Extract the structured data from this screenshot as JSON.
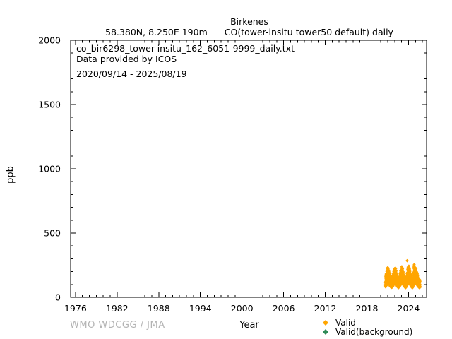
{
  "header": {
    "station": "Birkenes",
    "location": "58.380N, 8.250E 190m",
    "parameter": "CO(tower-insitu tower50 default) daily"
  },
  "infobox": {
    "filename": "co_bir6298_tower-insitu_162_6051-9999_daily.txt",
    "provider": "Data provided by ICOS",
    "period": "2020/09/14 - 2025/08/19"
  },
  "footer": {
    "credit": "WMO WDCGG / JMA"
  },
  "legend": {
    "items": [
      {
        "label": "Valid",
        "color": "#FFA500",
        "marker": "diamond-icon"
      },
      {
        "label": "Valid(background)",
        "color": "#2E8B57",
        "marker": "diamond-icon"
      }
    ]
  },
  "chart_data": {
    "type": "scatter",
    "title": "Birkenes",
    "subtitle": "58.380N, 8.250E 190m   CO(tower-insitu tower50 default) daily",
    "xlabel": "Year",
    "ylabel": "ppb",
    "units": "ppb",
    "grid": false,
    "legend_position": "bottom-right",
    "xlim": [
      1975.3,
      2026.6
    ],
    "ylim": [
      0,
      2000
    ],
    "x_major_ticks": [
      1976,
      1982,
      1988,
      1994,
      2000,
      2006,
      2012,
      2018,
      2024
    ],
    "x_tick_labels": [
      "1976",
      "1982",
      "1988",
      "1994",
      "2000",
      "2006",
      "2012",
      "2018",
      "2024"
    ],
    "x_minor_step": 1,
    "y_major_ticks": [
      0,
      500,
      1000,
      1500,
      2000
    ],
    "y_tick_labels": [
      "0",
      "500",
      "1000",
      "1500",
      "2000"
    ],
    "y_minor_step": 100,
    "data_period": "2020/09/14 - 2025/08/19",
    "series": [
      {
        "name": "Valid",
        "color": "#FFA500",
        "marker": "diamond",
        "points_per_month": 30,
        "monthly_envelope": [
          [
            2020.72,
            80,
            170
          ],
          [
            2020.8,
            88,
            185
          ],
          [
            2020.88,
            98,
            215
          ],
          [
            2020.97,
            108,
            235
          ],
          [
            2021.05,
            112,
            232
          ],
          [
            2021.13,
            108,
            222
          ],
          [
            2021.22,
            100,
            205
          ],
          [
            2021.3,
            92,
            185
          ],
          [
            2021.38,
            85,
            165
          ],
          [
            2021.47,
            78,
            148
          ],
          [
            2021.55,
            75,
            140
          ],
          [
            2021.63,
            78,
            148
          ],
          [
            2021.72,
            84,
            165
          ],
          [
            2021.8,
            92,
            185
          ],
          [
            2021.88,
            100,
            210
          ],
          [
            2021.97,
            108,
            232
          ],
          [
            2022.05,
            112,
            235
          ],
          [
            2022.13,
            108,
            225
          ],
          [
            2022.22,
            100,
            205
          ],
          [
            2022.3,
            92,
            185
          ],
          [
            2022.38,
            85,
            165
          ],
          [
            2022.47,
            78,
            148
          ],
          [
            2022.55,
            74,
            138
          ],
          [
            2022.63,
            78,
            150
          ],
          [
            2022.72,
            85,
            170
          ],
          [
            2022.8,
            94,
            192
          ],
          [
            2022.88,
            102,
            215
          ],
          [
            2022.97,
            110,
            238
          ],
          [
            2023.05,
            113,
            242
          ],
          [
            2023.13,
            108,
            228
          ],
          [
            2023.22,
            100,
            205
          ],
          [
            2023.3,
            92,
            182
          ],
          [
            2023.38,
            84,
            162
          ],
          [
            2023.47,
            78,
            146
          ],
          [
            2023.55,
            74,
            140
          ],
          [
            2023.63,
            78,
            152
          ],
          [
            2023.72,
            85,
            172
          ],
          [
            2023.8,
            94,
            195
          ],
          [
            2023.88,
            103,
            220
          ],
          [
            2023.97,
            111,
            240
          ],
          [
            2024.05,
            114,
            245
          ],
          [
            2024.13,
            109,
            230
          ],
          [
            2024.22,
            101,
            206
          ],
          [
            2024.3,
            92,
            183
          ],
          [
            2024.38,
            84,
            162
          ],
          [
            2024.47,
            78,
            146
          ],
          [
            2024.55,
            74,
            140
          ],
          [
            2024.63,
            79,
            155
          ],
          [
            2024.72,
            88,
            200
          ],
          [
            2024.8,
            100,
            258
          ],
          [
            2024.88,
            106,
            245
          ],
          [
            2024.97,
            112,
            238
          ],
          [
            2025.05,
            113,
            232
          ],
          [
            2025.13,
            108,
            220
          ],
          [
            2025.22,
            100,
            200
          ],
          [
            2025.3,
            91,
            180
          ],
          [
            2025.38,
            84,
            160
          ],
          [
            2025.47,
            77,
            145
          ],
          [
            2025.55,
            74,
            140
          ],
          [
            2025.62,
            76,
            138
          ]
        ],
        "outliers": [
          [
            2023.8,
            285
          ]
        ]
      },
      {
        "name": "Valid(background)",
        "color": "#2E8B57",
        "marker": "diamond",
        "points_per_month": 0,
        "monthly_envelope": [],
        "outliers": []
      }
    ]
  }
}
